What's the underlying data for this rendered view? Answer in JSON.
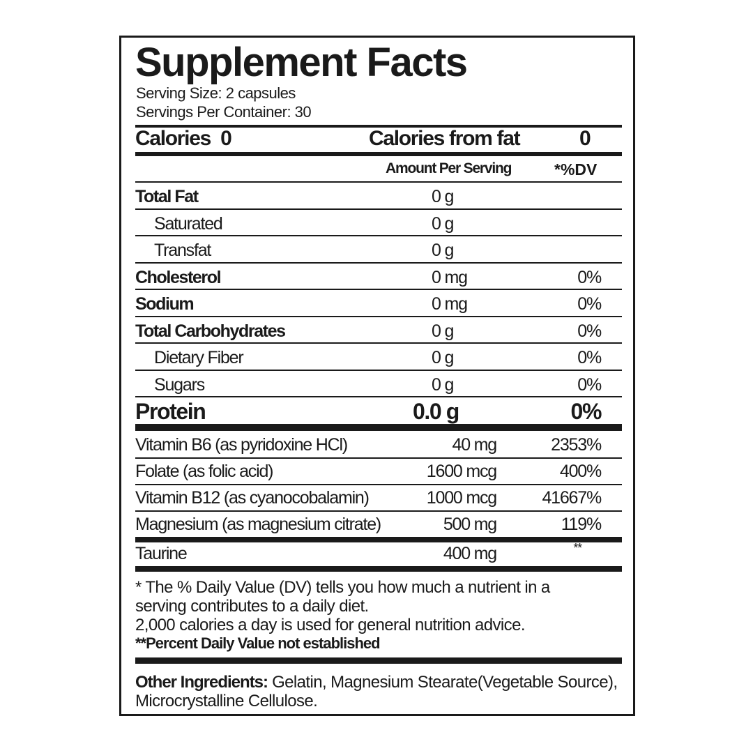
{
  "title": "Supplement Facts",
  "serving_size": "Serving Size: 2 capsules",
  "servings_per_container": "Servings Per Container: 30",
  "calories_label": "Calories",
  "calories_value": "0",
  "calories_from_fat_label": "Calories from fat",
  "calories_from_fat_value": "0",
  "header": {
    "amount": "Amount Per Serving",
    "dv": "*%DV"
  },
  "nutrients": [
    {
      "name": "Total Fat",
      "amount": "0 g",
      "dv": "",
      "bold": true,
      "indent": false
    },
    {
      "name": "Saturated",
      "amount": "0 g",
      "dv": "",
      "bold": false,
      "indent": true
    },
    {
      "name": "Transfat",
      "amount": "0 g",
      "dv": "",
      "bold": false,
      "indent": true
    },
    {
      "name": "Cholesterol",
      "amount": "0 mg",
      "dv": "0%",
      "bold": true,
      "indent": false
    },
    {
      "name": "Sodium",
      "amount": "0 mg",
      "dv": "0%",
      "bold": true,
      "indent": false
    },
    {
      "name": "Total Carbohydrates",
      "amount": "0 g",
      "dv": "0%",
      "bold": true,
      "indent": false
    },
    {
      "name": "Dietary Fiber",
      "amount": "0 g",
      "dv": "0%",
      "bold": false,
      "indent": true
    },
    {
      "name": "Sugars",
      "amount": "0 g",
      "dv": "0%",
      "bold": false,
      "indent": true
    }
  ],
  "protein": {
    "name": "Protein",
    "amount": "0.0 g",
    "dv": "0%"
  },
  "vitamins": [
    {
      "name": "Vitamin B6 (as pyridoxine HCl)",
      "amount": "40 mg",
      "dv": "2353%"
    },
    {
      "name": "Folate (as folic acid)",
      "amount": "1600 mcg",
      "dv": "400%"
    },
    {
      "name": "Vitamin B12 (as cyanocobalamin)",
      "amount": "1000 mcg",
      "dv": "41667%"
    },
    {
      "name": "Magnesium (as magnesium citrate)",
      "amount": "500 mg",
      "dv": "119%"
    }
  ],
  "taurine": {
    "name": "Taurine",
    "amount": "400 mg",
    "dv": "**"
  },
  "footnote": {
    "line1": "* The % Daily Value (DV) tells you how much a nutrient in a",
    "line2": "serving contributes to a daily diet.",
    "line3": "2,000 calories a day is used for general nutrition advice.",
    "line4": "**Percent Daily Value not established"
  },
  "other_ingredients": {
    "label": "Other Ingredients:",
    "line1": " Gelatin, Magnesium Stearate(Vegetable Source),",
    "line2": "Microcrystalline Cellulose."
  }
}
